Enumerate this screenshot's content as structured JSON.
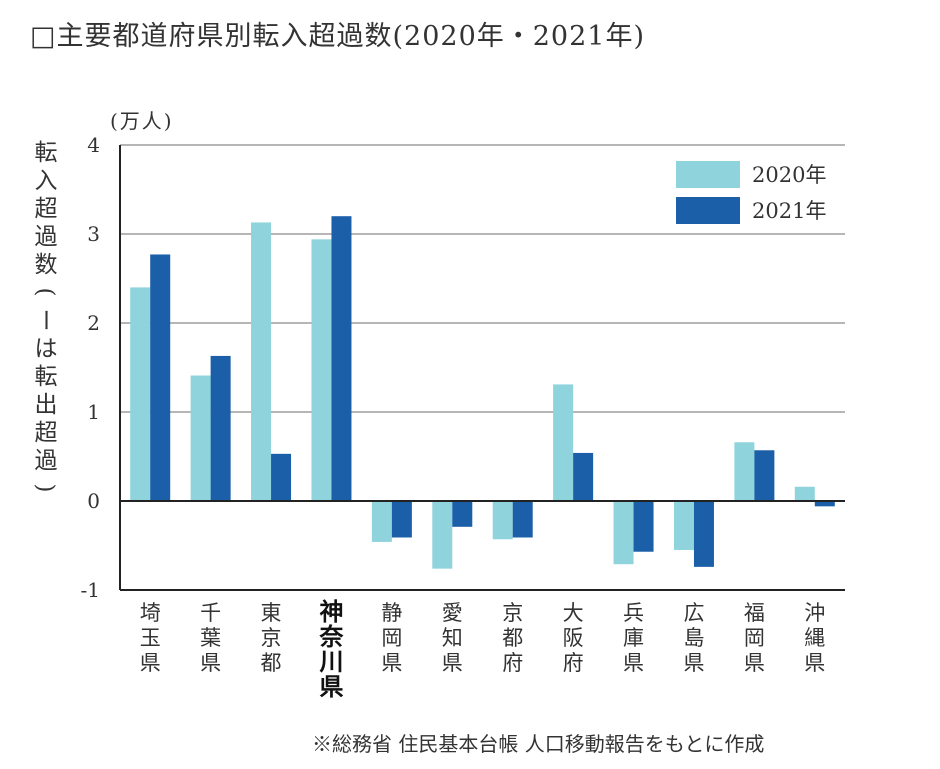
{
  "title": "□主要都道府県別転入超過数(2020年・2021年)",
  "note": "※総務省 住民基本台帳 人口移動報告をもとに作成",
  "colors": {
    "series_2020": "#8fd3dc",
    "series_2021": "#1b5fa8",
    "axis": "#222222",
    "grid": "#8a8a8a",
    "text": "#333333"
  },
  "chart_data": {
    "type": "bar",
    "ylabel": "転入超過数(ーは転出超過)",
    "yunit": "(万人)",
    "ylim": [
      -1,
      4
    ],
    "yticks": [
      -1,
      0,
      1,
      2,
      3,
      4
    ],
    "grid": true,
    "legend_position": "top-right",
    "categories": [
      "埼玉県",
      "千葉県",
      "東京都",
      "神奈川県",
      "静岡県",
      "愛知県",
      "京都府",
      "大阪府",
      "兵庫県",
      "広島県",
      "福岡県",
      "沖縄県"
    ],
    "highlight_category": "神奈川県",
    "series": [
      {
        "name": "2020年",
        "values": [
          2.4,
          1.41,
          3.13,
          2.94,
          -0.46,
          -0.76,
          -0.43,
          1.31,
          -0.71,
          -0.55,
          0.66,
          0.16
        ]
      },
      {
        "name": "2021年",
        "values": [
          2.77,
          1.63,
          0.53,
          3.2,
          -0.41,
          -0.29,
          -0.41,
          0.54,
          -0.57,
          -0.74,
          0.57,
          -0.06
        ]
      }
    ]
  }
}
